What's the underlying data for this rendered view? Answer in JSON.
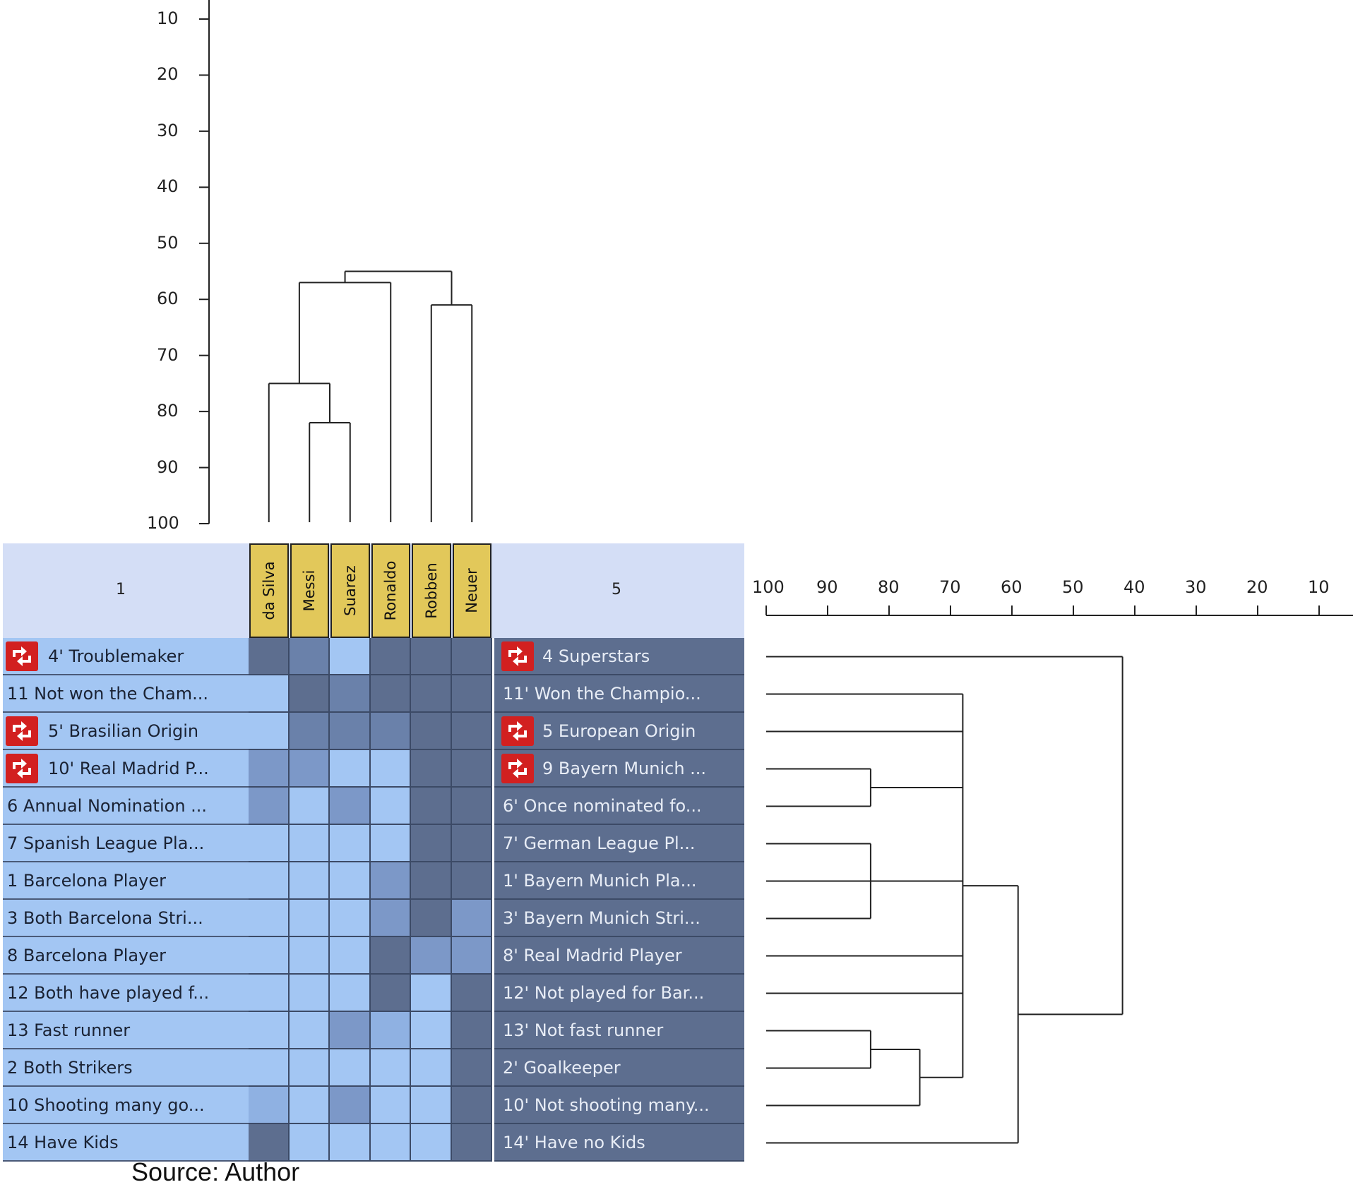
{
  "chart_data": {
    "type": "heatmap",
    "footer_text": "Source: Author",
    "left_pole_header": "1",
    "right_pole_header": "5",
    "elements": [
      "da Silva",
      "Messi",
      "Suarez",
      "Ronaldo",
      "Robben",
      "Neuer"
    ],
    "constructs": [
      {
        "left": "4' Troublemaker",
        "right": "4 Superstars",
        "left_icon": "swap-icon",
        "right_icon": "swap-icon"
      },
      {
        "left": "11 Not won the Cham...",
        "right": "11' Won the Champio...",
        "left_icon": null,
        "right_icon": null
      },
      {
        "left": "5' Brasilian Origin",
        "right": "5 European Origin",
        "left_icon": "swap-icon",
        "right_icon": "swap-icon"
      },
      {
        "left": "10' Real Madrid P...",
        "right": "9 Bayern Munich ...",
        "left_icon": "swap-icon",
        "right_icon": "swap-icon"
      },
      {
        "left": "6 Annual Nomination ...",
        "right": "6' Once nominated fo...",
        "left_icon": null,
        "right_icon": null
      },
      {
        "left": "7 Spanish League Pla...",
        "right": "7' German League Pl...",
        "left_icon": null,
        "right_icon": null
      },
      {
        "left": "1 Barcelona Player",
        "right": "1' Bayern Munich Pla...",
        "left_icon": null,
        "right_icon": null
      },
      {
        "left": "3 Both Barcelona Stri...",
        "right": "3' Bayern Munich Stri...",
        "left_icon": null,
        "right_icon": null
      },
      {
        "left": "8 Barcelona Player",
        "right": "8' Real Madrid Player",
        "left_icon": null,
        "right_icon": null
      },
      {
        "left": "12 Both have played f...",
        "right": "12' Not played for Bar...",
        "left_icon": null,
        "right_icon": null
      },
      {
        "left": "13 Fast runner",
        "right": "13' Not fast runner",
        "left_icon": null,
        "right_icon": null
      },
      {
        "left": "2 Both Strikers",
        "right": "2' Goalkeeper",
        "left_icon": null,
        "right_icon": null
      },
      {
        "left": "10 Shooting many go...",
        "right": "10' Not shooting many...",
        "left_icon": null,
        "right_icon": null
      },
      {
        "left": "14 Have Kids",
        "right": "14' Have no Kids",
        "left_icon": null,
        "right_icon": null
      }
    ],
    "ratings": [
      [
        5,
        4,
        1,
        5,
        5,
        5
      ],
      [
        1,
        5,
        4,
        5,
        5,
        5
      ],
      [
        1,
        4,
        4,
        4,
        5,
        5
      ],
      [
        3,
        3,
        1,
        1,
        5,
        5
      ],
      [
        3,
        1,
        3,
        1,
        5,
        5
      ],
      [
        1,
        1,
        1,
        1,
        5,
        5
      ],
      [
        1,
        1,
        1,
        3,
        5,
        5
      ],
      [
        1,
        1,
        1,
        3,
        5,
        3
      ],
      [
        1,
        1,
        1,
        5,
        3,
        3
      ],
      [
        1,
        1,
        1,
        5,
        1,
        5
      ],
      [
        1,
        1,
        3,
        2,
        1,
        5
      ],
      [
        1,
        1,
        1,
        1,
        1,
        5
      ],
      [
        2,
        1,
        3,
        1,
        1,
        5
      ],
      [
        5,
        1,
        1,
        1,
        1,
        5
      ]
    ],
    "rating_colors": {
      "1": "#a3c6f3",
      "2": "#8fb1e2",
      "3": "#7c98c8",
      "4": "#6a81aa",
      "5": "#5d6e8f"
    },
    "element_dendrogram": {
      "axis_ticks": [
        10,
        20,
        30,
        40,
        50,
        60,
        70,
        80,
        90,
        100
      ],
      "merges": [
        {
          "a": "Messi",
          "b": "Suarez",
          "similarity": 82
        },
        {
          "a": "da Silva",
          "b": "Messi+Suarez",
          "similarity": 75
        },
        {
          "a": "Robben",
          "b": "Neuer",
          "similarity": 61
        },
        {
          "a": "da Silva+Messi+Suarez",
          "b": "Ronaldo",
          "similarity": 57
        },
        {
          "a": "da Silva+Messi+Suarez+Ronaldo",
          "b": "Robben+Neuer",
          "similarity": 55
        }
      ]
    },
    "construct_dendrogram": {
      "axis_ticks": [
        100,
        90,
        80,
        70,
        60,
        50,
        40,
        30,
        20,
        10
      ],
      "merges": [
        {
          "rows": [
            3,
            4
          ],
          "similarity": 83
        },
        {
          "rows": [
            5,
            6,
            7
          ],
          "similarity": 83
        },
        {
          "rows": [
            10,
            11
          ],
          "similarity": 83
        },
        {
          "rows": [
            "10-11",
            12
          ],
          "similarity": 75
        },
        {
          "rows": [
            1,
            2,
            "3-4",
            "5-7",
            8,
            9,
            "10-12"
          ],
          "similarity": 68
        },
        {
          "rows": [
            "1-12",
            13
          ],
          "similarity": 59
        },
        {
          "rows": [
            0,
            "1-13"
          ],
          "similarity": 42
        }
      ]
    }
  }
}
